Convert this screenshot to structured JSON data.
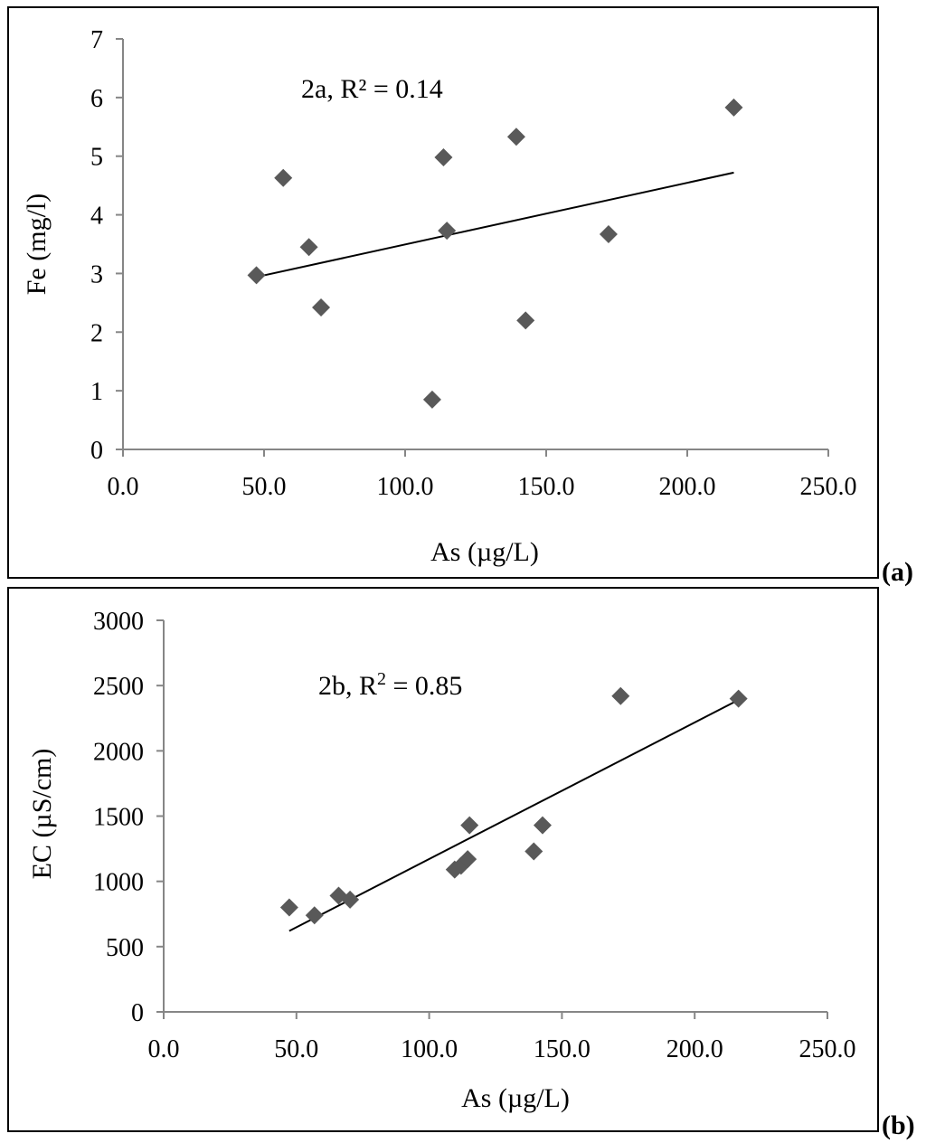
{
  "panels": [
    {
      "panel_label": "(a)",
      "annotation": "2a, R² = 0.14",
      "chart_data": {
        "type": "scatter",
        "title": "",
        "xlabel": "As (µg/L)",
        "ylabel": "Fe (mg/l)",
        "xlim": [
          0,
          250
        ],
        "ylim": [
          0,
          7
        ],
        "xticks": [
          0,
          50,
          100,
          150,
          200,
          250
        ],
        "xtick_labels": [
          "0.0",
          "50.0",
          "100.0",
          "150.0",
          "200.0",
          "250.0"
        ],
        "yticks": [
          0,
          1,
          2,
          3,
          4,
          5,
          6,
          7
        ],
        "ytick_labels": [
          "0",
          "1",
          "2",
          "3",
          "4",
          "5",
          "6",
          "7"
        ],
        "points": [
          {
            "x": 47.3,
            "y": 2.97
          },
          {
            "x": 56.8,
            "y": 4.63
          },
          {
            "x": 65.9,
            "y": 3.45
          },
          {
            "x": 70.2,
            "y": 2.42
          },
          {
            "x": 109.6,
            "y": 0.85
          },
          {
            "x": 113.6,
            "y": 4.98
          },
          {
            "x": 114.8,
            "y": 3.73
          },
          {
            "x": 139.4,
            "y": 5.33
          },
          {
            "x": 142.7,
            "y": 2.2
          },
          {
            "x": 172.1,
            "y": 3.67
          },
          {
            "x": 216.5,
            "y": 5.83
          }
        ],
        "trendline": {
          "x": [
            47.3,
            216.5
          ],
          "y": [
            2.94,
            4.72
          ]
        },
        "marker_color": "#595959",
        "line_color": "#000000"
      }
    },
    {
      "panel_label": "(b)",
      "annotation": "2b, R",
      "annotation_sup": "2",
      "annotation_tail": " = 0.85",
      "chart_data": {
        "type": "scatter",
        "title": "",
        "xlabel": "As (µg/L)",
        "ylabel": "EC (µS/cm)",
        "xlim": [
          0,
          250
        ],
        "ylim": [
          0,
          3000
        ],
        "xticks": [
          0,
          50,
          100,
          150,
          200,
          250
        ],
        "xtick_labels": [
          "0.0",
          "50.0",
          "100.0",
          "150.0",
          "200.0",
          "250.0"
        ],
        "yticks": [
          0,
          500,
          1000,
          1500,
          2000,
          2500,
          3000
        ],
        "ytick_labels": [
          "0",
          "500",
          "1000",
          "1500",
          "2000",
          "2500",
          "3000"
        ],
        "points": [
          {
            "x": 47.3,
            "y": 800
          },
          {
            "x": 56.8,
            "y": 740
          },
          {
            "x": 65.9,
            "y": 890
          },
          {
            "x": 70.2,
            "y": 860
          },
          {
            "x": 109.6,
            "y": 1090
          },
          {
            "x": 112.0,
            "y": 1120
          },
          {
            "x": 114.5,
            "y": 1170
          },
          {
            "x": 115.2,
            "y": 1430
          },
          {
            "x": 139.4,
            "y": 1230
          },
          {
            "x": 142.7,
            "y": 1430
          },
          {
            "x": 172.1,
            "y": 2420
          },
          {
            "x": 216.5,
            "y": 2400
          }
        ],
        "trendline": {
          "x": [
            47.3,
            216.5
          ],
          "y": [
            620,
            2390
          ]
        },
        "marker_color": "#595959",
        "line_color": "#000000"
      }
    }
  ]
}
